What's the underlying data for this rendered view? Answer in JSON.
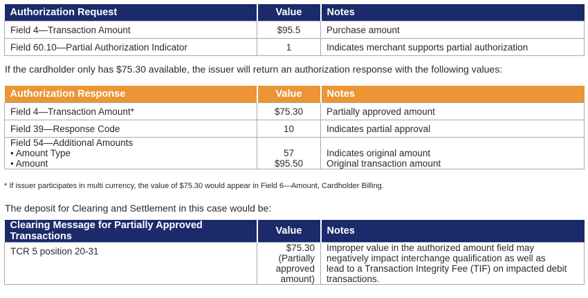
{
  "table1": {
    "headers": [
      "Authorization Request",
      "Value",
      "Notes"
    ],
    "rows": [
      {
        "field": "Field 4—Transaction Amount",
        "value": "$95.5",
        "notes": "Purchase amount"
      },
      {
        "field": "Field 60.10—Partial Authorization Indicator",
        "value": "1",
        "notes": "Indicates merchant supports partial authorization"
      }
    ]
  },
  "intro_text": "If the cardholder only has $75.30 available, the issuer will return an authorization response with the following values:",
  "table2": {
    "headers": [
      "Authorization Response",
      "Value",
      "Notes"
    ],
    "rows": [
      {
        "field": "Field 4—Transaction Amount*",
        "value": "$75.30",
        "notes": "Partially approved amount"
      },
      {
        "field": "Field 39—Response Code",
        "value": "10",
        "notes": "Indicates partial approval"
      }
    ],
    "multi_row": {
      "field_title": "Field 54—Additional Amounts",
      "sub1_label": "• Amount Type",
      "sub1_value": "57",
      "sub1_notes": "Indicates original amount",
      "sub2_label": "• Amount",
      "sub2_value": "$95.50",
      "sub2_notes": "Original transaction amount"
    }
  },
  "footnote": "* If issuer participates in multi currency, the value of $75.30 would appear in Field 6—Amount, Cardholder Billing.",
  "deposit_text": "The deposit for Clearing and Settlement in this case would be:",
  "table3": {
    "headers": [
      "Clearing Message for Partially Approved Transactions",
      "Value",
      "Notes"
    ],
    "row": {
      "field": "TCR 5 position 20-31",
      "value_lines": [
        "$75.30",
        "(Partially",
        "approved",
        "amount)"
      ],
      "notes_lines": [
        "Improper value in the authorized amount field may",
        "negatively impact interchange qualification as well as",
        "lead to a Transaction Integrity Fee (TIF) on impacted debit",
        "transactions."
      ]
    }
  },
  "colors": {
    "navy_header": "#1b2a6b",
    "orange_header": "#eb9534",
    "border": "#a9a9a9"
  }
}
